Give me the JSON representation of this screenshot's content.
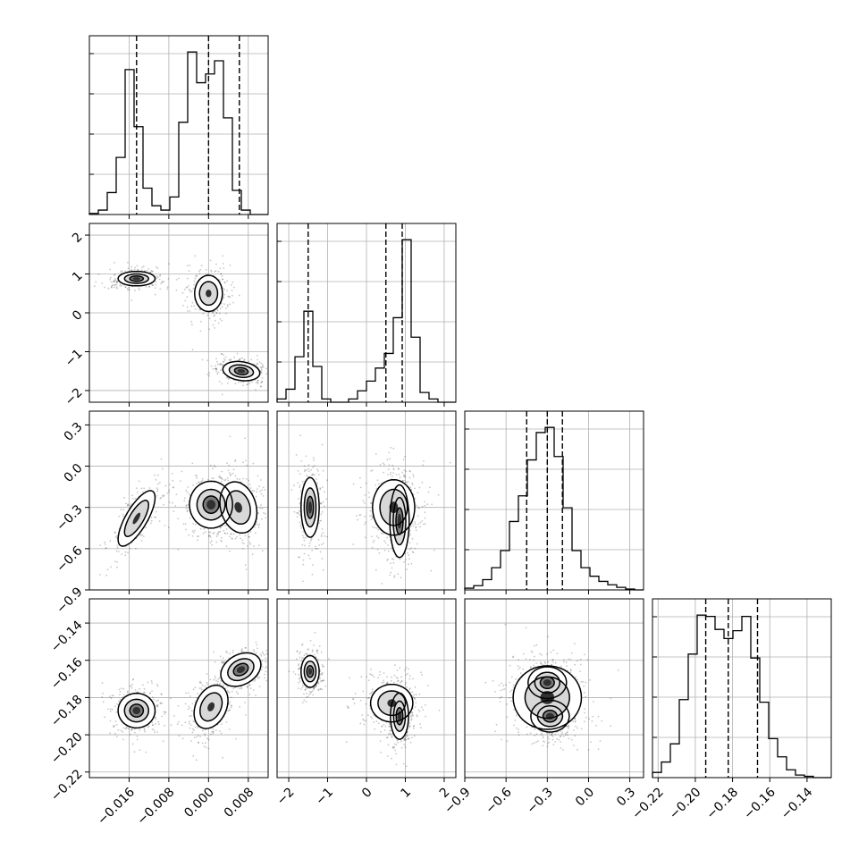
{
  "chart_data": {
    "type": "corner",
    "grid": true,
    "n_params": 4,
    "params": [
      {
        "range": [
          -0.024,
          0.012
        ],
        "ticks": [
          -0.016,
          -0.008,
          0.0,
          0.008
        ],
        "tick_labels": [
          "−0.016",
          "−0.008",
          "0.000",
          "0.008"
        ],
        "quantiles": [
          -0.0145,
          0.0,
          0.0062
        ],
        "hist": {
          "edges": [
            -0.024,
            -0.0222,
            -0.0204,
            -0.0186,
            -0.0168,
            -0.015,
            -0.0132,
            -0.0114,
            -0.0096,
            -0.0078,
            -0.006,
            -0.0042,
            -0.0024,
            -0.0006,
            0.0012,
            0.003,
            0.0048,
            0.0066,
            0.0084,
            0.0102,
            0.012
          ],
          "counts": [
            0.01,
            0.04,
            0.2,
            0.52,
            1.32,
            0.8,
            0.24,
            0.08,
            0.04,
            0.16,
            0.84,
            1.48,
            1.2,
            1.28,
            1.4,
            0.88,
            0.22,
            0.04,
            0.0,
            0.0
          ]
        }
      },
      {
        "range": [
          -2.3,
          2.3
        ],
        "ticks": [
          -2,
          -1,
          0,
          1,
          2
        ],
        "tick_labels": [
          "−2",
          "−1",
          "0",
          "1",
          "2"
        ],
        "quantiles": [
          -1.5,
          0.5,
          0.92
        ],
        "hist": {
          "edges": [
            -2.3,
            -2.07,
            -1.84,
            -1.61,
            -1.38,
            -1.15,
            -0.92,
            -0.69,
            -0.46,
            -0.23,
            0.0,
            0.23,
            0.46,
            0.69,
            0.92,
            1.15,
            1.38,
            1.61,
            1.84,
            2.07,
            2.3
          ],
          "counts": [
            0.04,
            0.16,
            0.56,
            1.12,
            0.44,
            0.04,
            0.0,
            0.0,
            0.04,
            0.14,
            0.26,
            0.42,
            0.6,
            1.04,
            2.0,
            0.8,
            0.12,
            0.04,
            0.0,
            0.0
          ]
        }
      },
      {
        "range": [
          -0.9,
          0.4
        ],
        "ticks": [
          -0.9,
          -0.6,
          -0.3,
          0.0,
          0.3
        ],
        "tick_labels": [
          "−0.9",
          "−0.6",
          "−0.3",
          "0.0",
          "0.3"
        ],
        "quantiles": [
          -0.45,
          -0.3,
          -0.19
        ],
        "hist": {
          "edges": [
            -0.9,
            -0.835,
            -0.77,
            -0.705,
            -0.64,
            -0.575,
            -0.51,
            -0.445,
            -0.38,
            -0.315,
            -0.25,
            -0.185,
            -0.12,
            -0.055,
            0.01,
            0.075,
            0.14,
            0.205,
            0.27,
            0.335,
            0.4
          ],
          "counts": [
            0.02,
            0.05,
            0.12,
            0.26,
            0.46,
            0.8,
            1.1,
            1.52,
            1.84,
            1.9,
            1.56,
            0.96,
            0.46,
            0.26,
            0.16,
            0.1,
            0.06,
            0.03,
            0.01,
            0.0
          ]
        }
      },
      {
        "range": [
          -0.223,
          -0.127
        ],
        "ticks": [
          -0.22,
          -0.2,
          -0.18,
          -0.16,
          -0.14
        ],
        "tick_labels": [
          "−0.22",
          "−0.20",
          "−0.18",
          "−0.16",
          "−0.14"
        ],
        "quantiles": [
          -0.1944,
          -0.1823,
          -0.1666
        ],
        "hist": {
          "edges": [
            -0.223,
            -0.2182,
            -0.2134,
            -0.2086,
            -0.2038,
            -0.199,
            -0.1942,
            -0.1894,
            -0.1846,
            -0.1798,
            -0.175,
            -0.1702,
            -0.1654,
            -0.1606,
            -0.1558,
            -0.151,
            -0.1462,
            -0.1414,
            -0.1366,
            -0.1318,
            -0.127
          ],
          "counts": [
            0.04,
            0.12,
            0.26,
            0.6,
            0.95,
            1.25,
            1.24,
            1.14,
            1.07,
            1.13,
            1.24,
            0.92,
            0.58,
            0.3,
            0.16,
            0.06,
            0.02,
            0.01,
            0.0,
            0.0
          ]
        }
      }
    ],
    "y_tick_labels": {
      "row2": [
        "−2",
        "−1",
        "0",
        "1",
        "2"
      ],
      "row3": [
        "−0.9",
        "−0.6",
        "−0.3",
        "0.0",
        "0.3"
      ],
      "row4": [
        "−0.22",
        "−0.20",
        "−0.18",
        "−0.16",
        "−0.14"
      ]
    },
    "clusters": {
      "0_1": [
        {
          "mean": [
            -0.0145,
            0.88
          ],
          "sd": [
            0.0024,
            0.12
          ],
          "rho": 0.0,
          "w": 0.33,
          "levels": [
            0.3,
            0.6,
            0.85
          ]
        },
        {
          "mean": [
            0.0,
            0.5
          ],
          "sd": [
            0.0018,
            0.3
          ],
          "rho": 0.0,
          "w": 0.34,
          "levels": [
            0.3,
            0.6
          ]
        },
        {
          "mean": [
            0.0066,
            -1.5
          ],
          "sd": [
            0.0024,
            0.16
          ],
          "rho": -0.2,
          "w": 0.33,
          "levels": [
            0.3,
            0.6,
            0.85
          ]
        }
      ],
      "0_2": [
        {
          "mean": [
            -0.0145,
            -0.38
          ],
          "sd": [
            0.0024,
            0.13
          ],
          "rho": 0.75,
          "w": 0.33,
          "levels": [
            0.3,
            0.6
          ]
        },
        {
          "mean": [
            0.0005,
            -0.28
          ],
          "sd": [
            0.0028,
            0.11
          ],
          "rho": 0.0,
          "w": 0.34,
          "levels": [
            0.3,
            0.6,
            0.85
          ]
        },
        {
          "mean": [
            0.006,
            -0.3
          ],
          "sd": [
            0.0024,
            0.12
          ],
          "rho": -0.2,
          "w": 0.33,
          "levels": [
            0.3,
            0.6
          ]
        }
      ],
      "1_2": [
        {
          "mean": [
            -1.45,
            -0.3
          ],
          "sd": [
            0.15,
            0.14
          ],
          "rho": 0.0,
          "w": 0.33,
          "levels": [
            0.3,
            0.6,
            0.85
          ]
        },
        {
          "mean": [
            0.7,
            -0.3
          ],
          "sd": [
            0.35,
            0.13
          ],
          "rho": 0.0,
          "w": 0.34,
          "levels": [
            0.3,
            0.6
          ]
        },
        {
          "mean": [
            0.85,
            -0.4
          ],
          "sd": [
            0.16,
            0.17
          ],
          "rho": 0.0,
          "w": 0.33,
          "levels": [
            0.3,
            0.6,
            0.85
          ]
        }
      ],
      "0_3": [
        {
          "mean": [
            -0.0145,
            -0.187
          ],
          "sd": [
            0.0024,
            0.006
          ],
          "rho": 0.0,
          "w": 0.33,
          "levels": [
            0.3,
            0.6,
            0.85
          ]
        },
        {
          "mean": [
            0.0005,
            -0.185
          ],
          "sd": [
            0.0022,
            0.0075
          ],
          "rho": 0.3,
          "w": 0.34,
          "levels": [
            0.3,
            0.6
          ]
        },
        {
          "mean": [
            0.0065,
            -0.165
          ],
          "sd": [
            0.0026,
            0.0058
          ],
          "rho": 0.3,
          "w": 0.33,
          "levels": [
            0.3,
            0.6,
            0.85
          ]
        }
      ],
      "1_3": [
        {
          "mean": [
            -1.45,
            -0.166
          ],
          "sd": [
            0.15,
            0.0055
          ],
          "rho": 0.0,
          "w": 0.33,
          "levels": [
            0.3,
            0.6,
            0.85
          ]
        },
        {
          "mean": [
            0.65,
            -0.183
          ],
          "sd": [
            0.35,
            0.0065
          ],
          "rho": 0.0,
          "w": 0.34,
          "levels": [
            0.3,
            0.6
          ]
        },
        {
          "mean": [
            0.85,
            -0.19
          ],
          "sd": [
            0.15,
            0.008
          ],
          "rho": 0.0,
          "w": 0.33,
          "levels": [
            0.3,
            0.6,
            0.85
          ]
        }
      ],
      "2_3": [
        {
          "mean": [
            -0.3,
            -0.172
          ],
          "sd": [
            0.09,
            0.0055
          ],
          "rho": 0.0,
          "w": 0.35,
          "levels": [
            0.3,
            0.6,
            0.85
          ]
        },
        {
          "mean": [
            -0.28,
            -0.19
          ],
          "sd": [
            0.09,
            0.0055
          ],
          "rho": 0.0,
          "w": 0.35,
          "levels": [
            0.3,
            0.6,
            0.85
          ]
        },
        {
          "mean": [
            -0.3,
            -0.18
          ],
          "sd": [
            0.16,
            0.011
          ],
          "rho": 0.0,
          "w": 0.3,
          "levels": [
            0.3,
            0.6
          ]
        }
      ]
    },
    "scatter_points_per_panel": 900,
    "colors": {
      "line": "#000000",
      "grid": "#b0b0b0",
      "density": "#000000",
      "background": "#ffffff"
    }
  }
}
